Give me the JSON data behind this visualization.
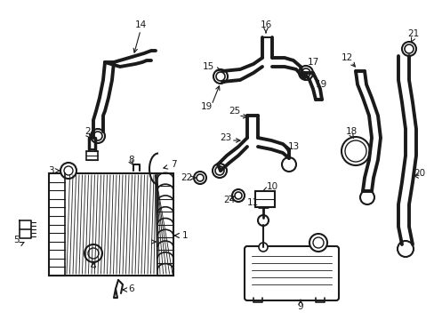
{
  "bg_color": "#ffffff",
  "line_color": "#1a1a1a",
  "fig_width": 4.89,
  "fig_height": 3.6,
  "dpi": 100,
  "fs_label": 7.5,
  "lw_hose": 2.8,
  "lw_main": 1.2
}
